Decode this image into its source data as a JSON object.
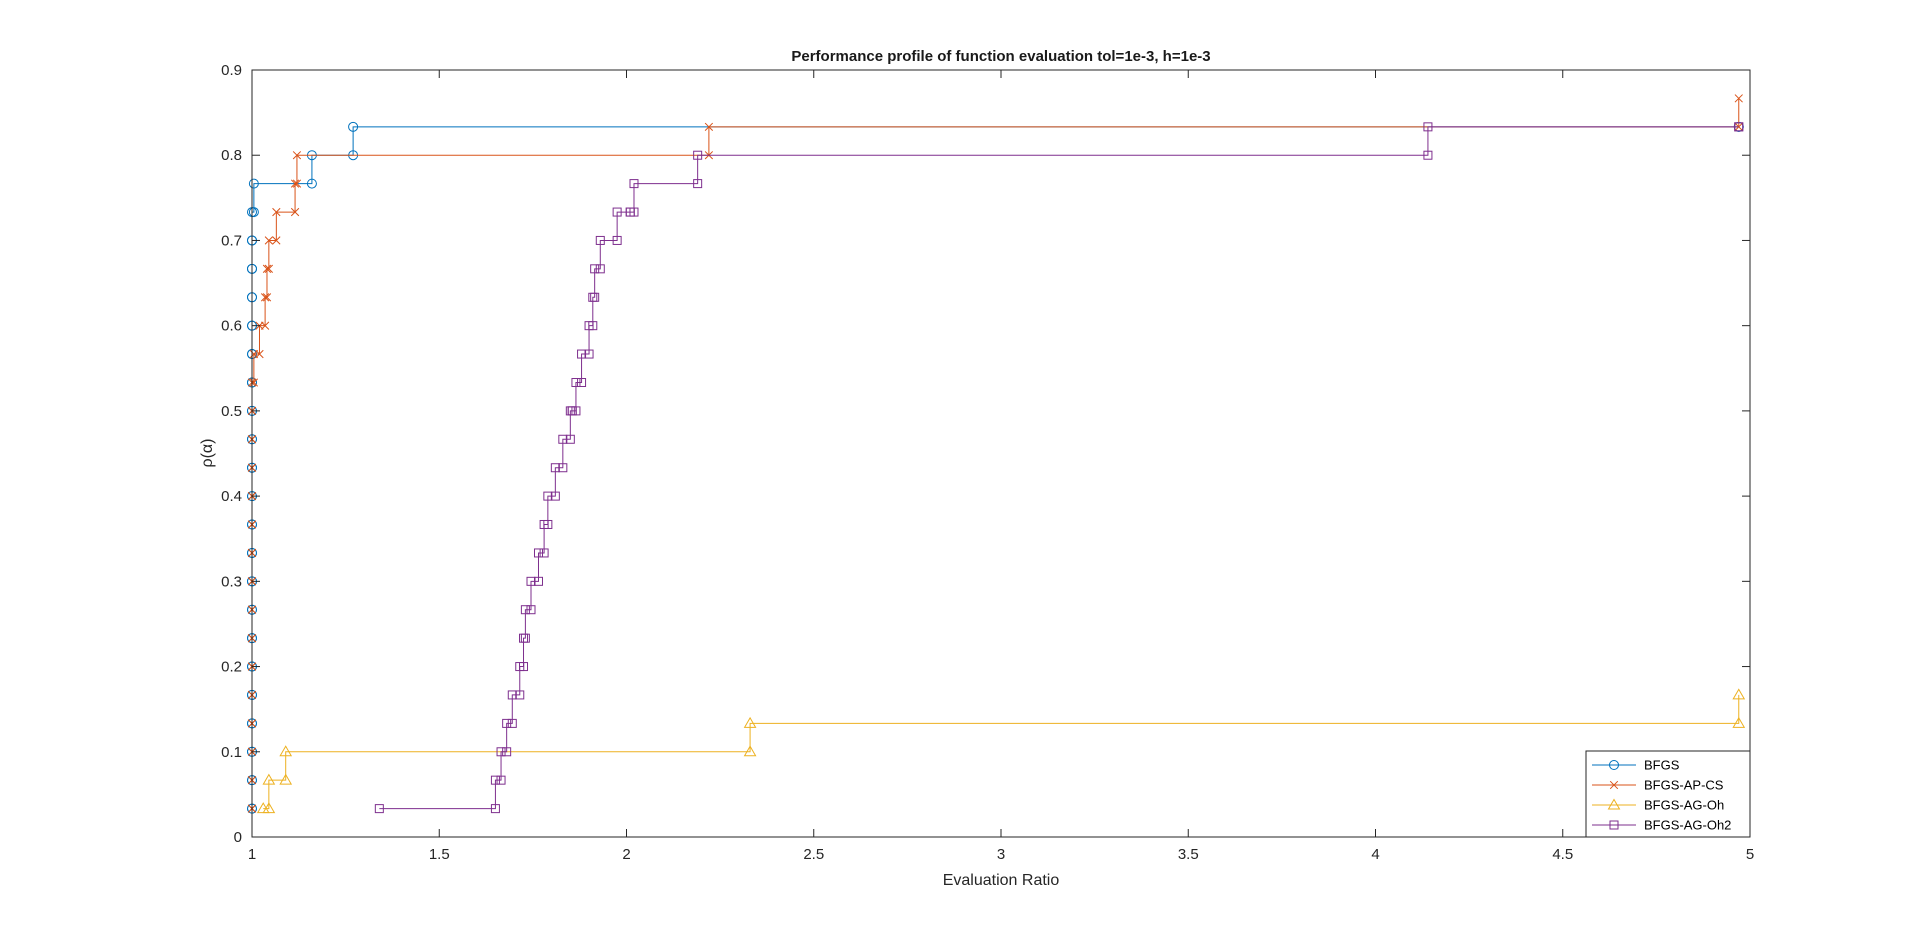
{
  "chart_data": {
    "type": "line",
    "title": "Performance profile of function evaluation    tol=1e-3,  h=1e-3",
    "xlabel": "Evaluation Ratio",
    "ylabel": "ρ(α)",
    "xlim": [
      1,
      5
    ],
    "ylim": [
      0,
      0.9
    ],
    "xticks": [
      1,
      1.5,
      2,
      2.5,
      3,
      3.5,
      4,
      4.5,
      5
    ],
    "yticks": [
      0,
      0.1,
      0.2,
      0.3,
      0.4,
      0.5,
      0.6,
      0.7,
      0.8,
      0.9
    ],
    "xtick_labels": [
      "1",
      "1.5",
      "2",
      "2.5",
      "3",
      "3.5",
      "4",
      "4.5",
      "5"
    ],
    "ytick_labels": [
      "0",
      "0.1",
      "0.2",
      "0.3",
      "0.4",
      "0.5",
      "0.6",
      "0.7",
      "0.8",
      "0.9"
    ],
    "grid": false,
    "legend_position": "bottom-right",
    "step": true,
    "series": [
      {
        "name": "BFGS",
        "color": "#0072BD",
        "marker": "circle",
        "x": [
          1.0,
          1.0,
          1.0,
          1.0,
          1.0,
          1.0,
          1.0,
          1.0,
          1.0,
          1.0,
          1.0,
          1.0,
          1.0,
          1.0,
          1.0,
          1.0,
          1.0,
          1.0,
          1.0,
          1.0,
          1.0,
          1.0,
          1.005,
          1.16,
          1.27,
          4.97
        ],
        "y": [
          0.0333,
          0.0667,
          0.1,
          0.1333,
          0.1667,
          0.2,
          0.2333,
          0.2667,
          0.3,
          0.3333,
          0.3667,
          0.4,
          0.4333,
          0.4667,
          0.5,
          0.5333,
          0.5667,
          0.6,
          0.6333,
          0.6667,
          0.7,
          0.7333,
          0.7667,
          0.8,
          0.8333,
          0.8333
        ]
      },
      {
        "name": "BFGS-AP-CS",
        "color": "#D95319",
        "marker": "x",
        "x": [
          1.0,
          1.0,
          1.0,
          1.0,
          1.0,
          1.0,
          1.0,
          1.0,
          1.0,
          1.0,
          1.0,
          1.0,
          1.0,
          1.0,
          1.0,
          1.0,
          1.005,
          1.02,
          1.035,
          1.04,
          1.045,
          1.065,
          1.115,
          1.12,
          2.22,
          4.97
        ],
        "y": [
          0.0333,
          0.0667,
          0.1,
          0.1333,
          0.1667,
          0.2,
          0.2333,
          0.2667,
          0.3,
          0.3333,
          0.3667,
          0.4,
          0.4333,
          0.4667,
          0.5,
          0.5333,
          0.5667,
          0.6,
          0.6333,
          0.6667,
          0.7,
          0.7333,
          0.7667,
          0.8,
          0.8333,
          0.8667
        ]
      },
      {
        "name": "BFGS-AG-Oh",
        "color": "#EDB120",
        "marker": "triangle",
        "x": [
          1.03,
          1.045,
          1.09,
          2.33,
          4.97
        ],
        "y": [
          0.0333,
          0.0667,
          0.1,
          0.1333,
          0.1667
        ]
      },
      {
        "name": "BFGS-AG-Oh2",
        "color": "#7E2F8E",
        "marker": "square",
        "x": [
          1.34,
          1.65,
          1.665,
          1.68,
          1.695,
          1.715,
          1.725,
          1.73,
          1.745,
          1.765,
          1.78,
          1.79,
          1.81,
          1.83,
          1.85,
          1.855,
          1.865,
          1.88,
          1.9,
          1.91,
          1.915,
          1.93,
          1.975,
          2.01,
          2.02,
          2.19,
          4.14,
          4.97
        ],
        "y": [
          0.0333,
          0.0667,
          0.1,
          0.1333,
          0.1667,
          0.2,
          0.2333,
          0.2667,
          0.3,
          0.3333,
          0.3667,
          0.4,
          0.4333,
          0.4667,
          0.5,
          0.5,
          0.5333,
          0.5667,
          0.6,
          0.6333,
          0.6667,
          0.7,
          0.7333,
          0.7333,
          0.7667,
          0.8,
          0.8333,
          0.8333
        ]
      }
    ]
  }
}
